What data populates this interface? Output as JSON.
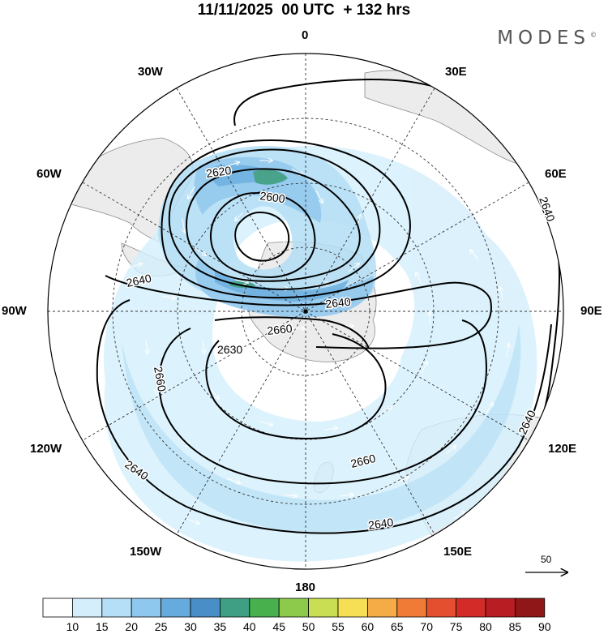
{
  "title": "11/11/2025  00 UTC  + 132 hrs",
  "logo": "MODES",
  "logo_mark": "©",
  "longitude_labels": {
    "lon_0": "0",
    "lon_30e": "30E",
    "lon_60e": "60E",
    "lon_90e": "90E",
    "lon_120e": "120E",
    "lon_150e": "150E",
    "lon_180": "180",
    "lon_150w": "150W",
    "lon_120w": "120W",
    "lon_90w": "90W",
    "lon_60w": "60W",
    "lon_30w": "30W"
  },
  "contour_labels": [
    {
      "id": "c2620",
      "text": "2620"
    },
    {
      "id": "c2600",
      "text": "2600"
    },
    {
      "id": "c2640a",
      "text": "2640"
    },
    {
      "id": "c2640b",
      "text": "2640"
    },
    {
      "id": "c2660a",
      "text": "2660"
    },
    {
      "id": "c2630",
      "text": "2630"
    },
    {
      "id": "c2660b",
      "text": "2660"
    },
    {
      "id": "c2640c",
      "text": "2640"
    },
    {
      "id": "c2660c",
      "text": "2660"
    },
    {
      "id": "c2640d",
      "text": "2640"
    },
    {
      "id": "c2640e",
      "text": "2640"
    },
    {
      "id": "c2640f",
      "text": "2640"
    }
  ],
  "reference_vector": "50",
  "colorbar": {
    "labels": [
      "10",
      "15",
      "20",
      "25",
      "30",
      "35",
      "40",
      "45",
      "50",
      "55",
      "60",
      "65",
      "70",
      "75",
      "80",
      "85",
      "90"
    ],
    "colors": [
      "#ffffff",
      "#d4eefb",
      "#b4dff6",
      "#8fc8ee",
      "#66abde",
      "#4a8ec7",
      "#3f9f84",
      "#49b04e",
      "#8dca4c",
      "#c9de52",
      "#f6df55",
      "#f5ac46",
      "#ef7b37",
      "#e4502f",
      "#d32c28",
      "#b71d22",
      "#8f1718"
    ]
  },
  "colors": {
    "land": "#ececec",
    "coast": "#8a8a8a",
    "grid": "#333333",
    "contour": "#000000"
  }
}
